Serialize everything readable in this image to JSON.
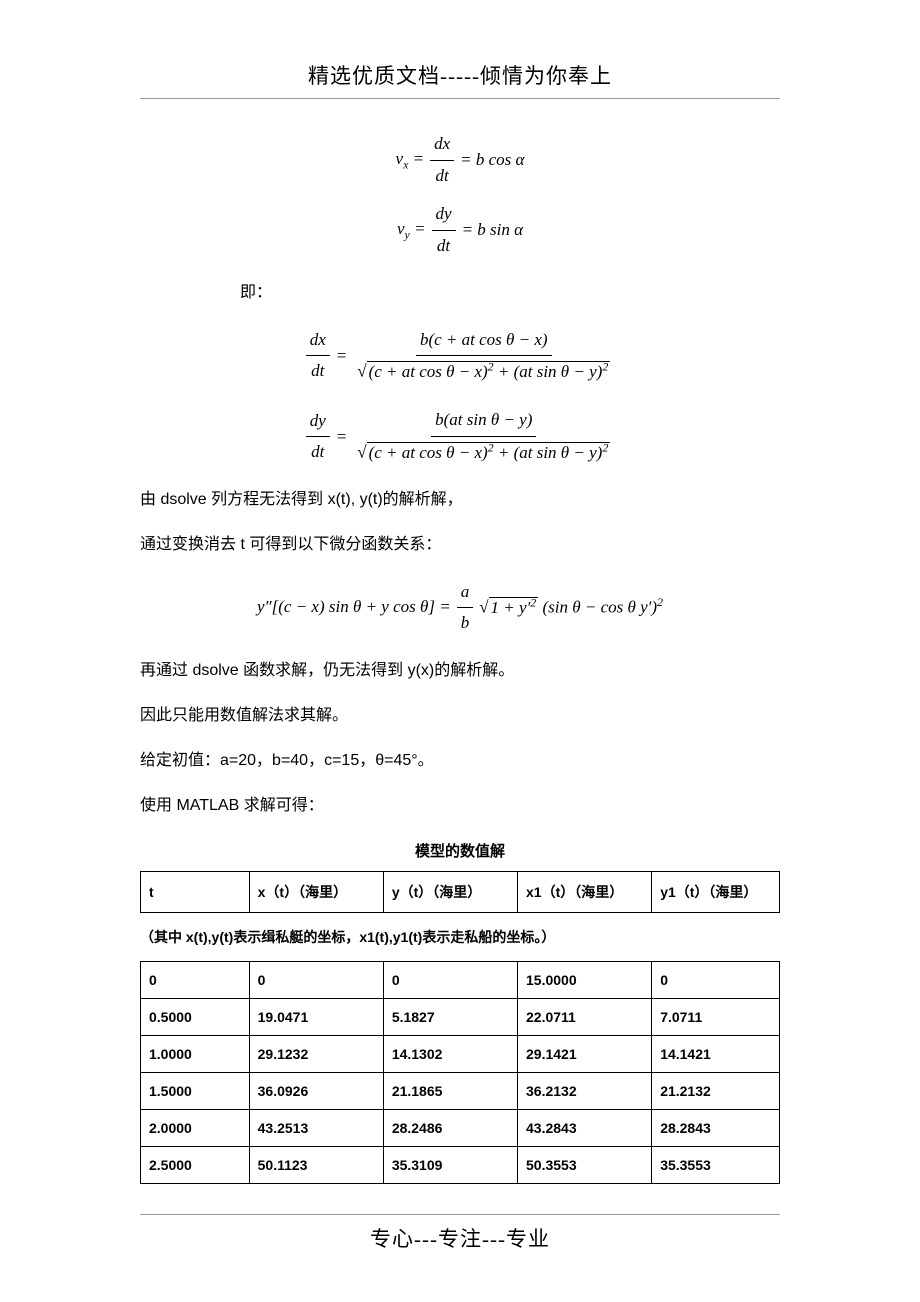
{
  "header": "精选优质文档-----倾情为你奉上",
  "footer": "专心---专注---专业",
  "equations": {
    "vx": "v_x = dx/dt = b cos α",
    "vy": "v_y = dy/dt = b sin α",
    "label_ji": "即：",
    "dxdt_num": "b(c + at cos θ − x)",
    "dxdt_den": "√((c + at cos θ − x)² + (at sin θ − y)²)",
    "dydt_num": "b(at sin θ − y)",
    "dydt_den": "√((c + at cos θ − x)² + (at sin θ − y)²)",
    "ypp": "y″[(c − x) sin θ + y cos θ] = (a/b)√(1 + y′²)(sin θ − cos θ y′)²"
  },
  "paragraphs": {
    "p1": "由 dsolve 列方程无法得到 x(t), y(t)的解析解，",
    "p2": "通过变换消去 t 可得到以下微分函数关系：",
    "p3": "再通过 dsolve 函数求解，仍无法得到 y(x)的解析解。",
    "p4": "因此只能用数值解法求其解。",
    "p5": "给定初值：a=20，b=40，c=15，θ=45°。",
    "p6": "使用 MATLAB 求解可得："
  },
  "table_title": "模型的数值解",
  "table_headers": {
    "c1": "t",
    "c2": "x（t）（海里）",
    "c3": "y（t）（海里）",
    "c4": "x1（t）（海里）",
    "c5": "y1（t）（海里）"
  },
  "note_text": "（其中 x(t),y(t)表示缉私艇的坐标，x1(t),y1(t)表示走私船的坐标。）",
  "table_rows": [
    {
      "t": "0",
      "x": "0",
      "y": "0",
      "x1": "15.0000",
      "y1": "0"
    },
    {
      "t": "0.5000",
      "x": "19.0471",
      "y": "5.1827",
      "x1": "22.0711",
      "y1": "7.0711"
    },
    {
      "t": "1.0000",
      "x": "29.1232",
      "y": "14.1302",
      "x1": "29.1421",
      "y1": "14.1421"
    },
    {
      "t": "1.5000",
      "x": "36.0926",
      "y": "21.1865",
      "x1": "36.2132",
      "y1": "21.2132"
    },
    {
      "t": "2.0000",
      "x": "43.2513",
      "y": "28.2486",
      "x1": "43.2843",
      "y1": "28.2843"
    },
    {
      "t": "2.5000",
      "x": "50.1123",
      "y": "35.3109",
      "x1": "50.3553",
      "y1": "35.3553"
    }
  ]
}
